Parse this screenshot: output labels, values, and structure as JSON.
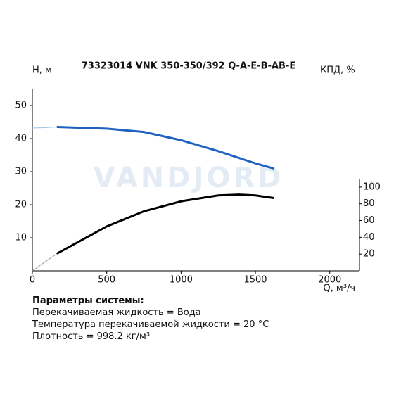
{
  "chart_data": {
    "type": "line",
    "title": "73323014 VNK 350-350/392 Q-A-E-B-AB-E",
    "ylabel": "H, м",
    "y2label": "КПД, %",
    "xlabel": "Q, м³/ч",
    "watermark": "VANDJORD",
    "xlim": [
      0,
      2200
    ],
    "xticks": [
      0,
      500,
      1000,
      1500,
      2000
    ],
    "ylim": [
      0,
      55
    ],
    "yticks": [
      10,
      20,
      30,
      40,
      50
    ],
    "y2lim": [
      0,
      217
    ],
    "y2ticks": [
      20,
      40,
      60,
      80,
      100
    ],
    "series": [
      {
        "color": "#9ec3e6",
        "width": 1,
        "x": [
          0,
          80,
          170
        ],
        "values": [
          43.2,
          43.3,
          43.5
        ]
      },
      {
        "color": "#1f62c2",
        "width": 3,
        "x": [
          170,
          500,
          750,
          1000,
          1250,
          1500,
          1620
        ],
        "values": [
          43.5,
          43,
          42,
          39.5,
          36.2,
          32.5,
          31
        ]
      },
      {
        "axis": "y2",
        "color": "#999999",
        "width": 1,
        "x": [
          0,
          80,
          170
        ],
        "values": [
          0,
          10,
          21
        ]
      },
      {
        "axis": "y2",
        "color": "#000000",
        "width": 3,
        "x": [
          170,
          500,
          750,
          1000,
          1250,
          1390,
          1500,
          1620
        ],
        "values": [
          21,
          53,
          71,
          83,
          90,
          91,
          90,
          87
        ]
      }
    ]
  },
  "parameters": {
    "heading": "Параметры системы:",
    "lines": [
      "Перекачиваемая жидкость = Вода",
      "Температура перекачиваемой жидкости = 20 °C",
      "Плотность = 998.2 кг/м³"
    ]
  }
}
